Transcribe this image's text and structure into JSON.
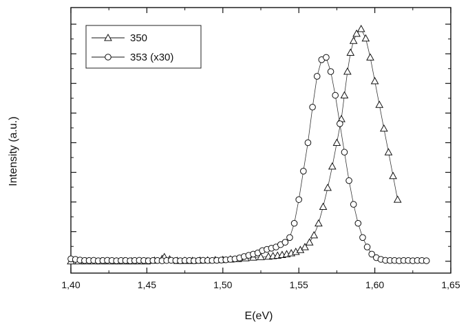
{
  "chart_data": {
    "type": "scatter",
    "xlabel": "E(eV)",
    "ylabel": "Intensity (a.u.)",
    "xlim": [
      1.4,
      1.65
    ],
    "ylim": [
      -0.05,
      1.07
    ],
    "x_ticks": [
      "1,40",
      "1,45",
      "1,50",
      "1,55",
      "1,60",
      "1,65"
    ],
    "x_tick_values": [
      1.4,
      1.45,
      1.5,
      1.55,
      1.6,
      1.65
    ],
    "y_tick_labels_shown": false,
    "legend_position": "top-left",
    "series": [
      {
        "name": "350",
        "marker": "triangle",
        "line": "solid",
        "x": [
          1.4,
          1.405,
          1.41,
          1.415,
          1.42,
          1.425,
          1.43,
          1.435,
          1.44,
          1.445,
          1.45,
          1.455,
          1.46,
          1.4615,
          1.465,
          1.47,
          1.475,
          1.48,
          1.485,
          1.49,
          1.495,
          1.5,
          1.505,
          1.51,
          1.515,
          1.52,
          1.525,
          1.53,
          1.533,
          1.536,
          1.539,
          1.542,
          1.545,
          1.548,
          1.551,
          1.554,
          1.557,
          1.56,
          1.563,
          1.566,
          1.569,
          1.572,
          1.575,
          1.578,
          1.58,
          1.582,
          1.584,
          1.586,
          1.588,
          1.591,
          1.594,
          1.597,
          1.6,
          1.603,
          1.606,
          1.609,
          1.612,
          1.615
        ],
        "y": [
          0.0,
          0.0,
          0.0,
          0.0,
          0.0,
          0.0,
          0.0,
          0.0,
          0.0,
          0.0,
          0.0,
          0.003,
          0.01,
          0.018,
          0.008,
          0.002,
          0.002,
          0.002,
          0.003,
          0.004,
          0.005,
          0.006,
          0.008,
          0.01,
          0.013,
          0.016,
          0.018,
          0.02,
          0.022,
          0.024,
          0.027,
          0.03,
          0.034,
          0.04,
          0.048,
          0.06,
          0.08,
          0.11,
          0.16,
          0.23,
          0.31,
          0.4,
          0.5,
          0.6,
          0.7,
          0.8,
          0.88,
          0.93,
          0.96,
          0.98,
          0.94,
          0.86,
          0.76,
          0.66,
          0.56,
          0.46,
          0.36,
          0.26
        ]
      },
      {
        "name": "353 (x30)",
        "marker": "circle",
        "line": "solid",
        "x": [
          1.4,
          1.403,
          1.406,
          1.409,
          1.412,
          1.415,
          1.418,
          1.421,
          1.424,
          1.427,
          1.43,
          1.433,
          1.436,
          1.439,
          1.442,
          1.445,
          1.448,
          1.451,
          1.454,
          1.457,
          1.46,
          1.463,
          1.466,
          1.469,
          1.472,
          1.475,
          1.478,
          1.481,
          1.484,
          1.487,
          1.49,
          1.493,
          1.496,
          1.499,
          1.502,
          1.505,
          1.508,
          1.511,
          1.514,
          1.517,
          1.52,
          1.523,
          1.526,
          1.529,
          1.532,
          1.535,
          1.538,
          1.541,
          1.544,
          1.547,
          1.55,
          1.553,
          1.556,
          1.559,
          1.562,
          1.565,
          1.568,
          1.571,
          1.574,
          1.577,
          1.58,
          1.583,
          1.586,
          1.589,
          1.592,
          1.595,
          1.598,
          1.601,
          1.604,
          1.607,
          1.61,
          1.613,
          1.616,
          1.619,
          1.622,
          1.625,
          1.628,
          1.631,
          1.634
        ],
        "y": [
          0.01,
          0.008,
          0.005,
          0.003,
          0.003,
          0.004,
          0.002,
          0.003,
          0.004,
          0.003,
          0.002,
          0.003,
          0.003,
          0.002,
          0.003,
          0.004,
          0.003,
          0.002,
          0.003,
          0.003,
          0.002,
          0.003,
          0.004,
          0.003,
          0.002,
          0.003,
          0.003,
          0.002,
          0.003,
          0.004,
          0.003,
          0.003,
          0.004,
          0.005,
          0.006,
          0.008,
          0.01,
          0.014,
          0.02,
          0.025,
          0.03,
          0.035,
          0.045,
          0.05,
          0.055,
          0.06,
          0.07,
          0.08,
          0.1,
          0.16,
          0.26,
          0.38,
          0.5,
          0.65,
          0.78,
          0.85,
          0.86,
          0.8,
          0.7,
          0.58,
          0.46,
          0.34,
          0.24,
          0.16,
          0.1,
          0.06,
          0.03,
          0.015,
          0.008,
          0.004,
          0.003,
          0.003,
          0.002,
          0.003,
          0.003,
          0.002,
          0.003,
          0.003,
          0.002
        ]
      }
    ]
  }
}
